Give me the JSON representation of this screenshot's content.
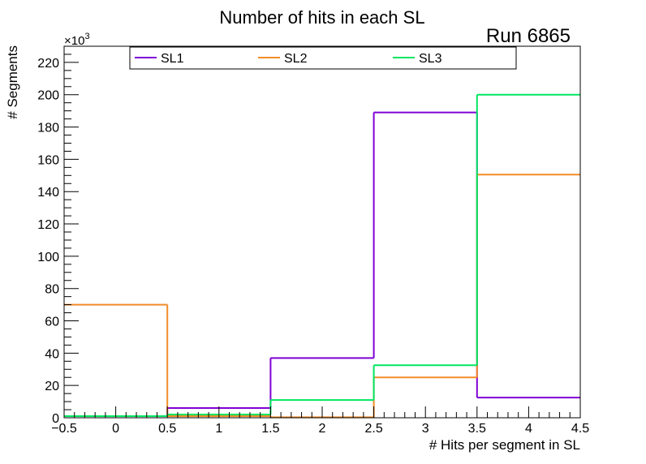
{
  "chart_data": {
    "type": "step-histogram",
    "title": "Number of hits in each SL",
    "annotation": "Run 6865",
    "xlabel": "# Hits per segment in SL",
    "ylabel": "# Segments",
    "y_multiplier_label": "×10",
    "y_multiplier_exponent": "3",
    "xlim": [
      -0.5,
      4.5
    ],
    "ylim": [
      0,
      230
    ],
    "x_ticks": [
      -0.5,
      0,
      0.5,
      1,
      1.5,
      2,
      2.5,
      3,
      3.5,
      4,
      4.5
    ],
    "x_tick_labels": [
      "−0.5",
      "0",
      "0.5",
      "1",
      "1.5",
      "2",
      "2.5",
      "3",
      "3.5",
      "4",
      "4.5"
    ],
    "y_ticks": [
      0,
      20,
      40,
      60,
      80,
      100,
      120,
      140,
      160,
      180,
      200,
      220
    ],
    "y_tick_labels": [
      "0",
      "20",
      "40",
      "60",
      "80",
      "100",
      "120",
      "140",
      "160",
      "180",
      "200",
      "220"
    ],
    "bin_edges": [
      -0.5,
      0.5,
      1.5,
      2.5,
      3.5,
      4.5
    ],
    "legend_position": "top",
    "series": [
      {
        "name": "SL1",
        "color": "#8000d6",
        "values": [
          1,
          6,
          37,
          189,
          12.5
        ]
      },
      {
        "name": "SL2",
        "color": "#f28c28",
        "values": [
          70,
          1,
          0.3,
          25,
          150.5
        ]
      },
      {
        "name": "SL3",
        "color": "#00e660",
        "values": [
          1,
          2,
          11,
          32.5,
          200
        ]
      }
    ]
  }
}
